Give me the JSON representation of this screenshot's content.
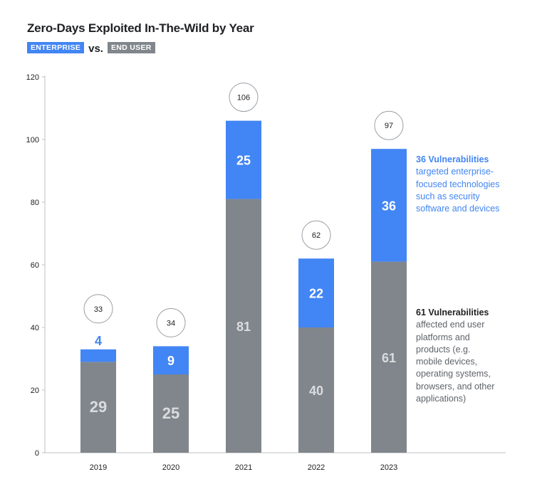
{
  "colors": {
    "enterprise": "#4285f4",
    "end_user": "#80868b",
    "axis": "#5f6368",
    "text": "#202124"
  },
  "chart_data": {
    "type": "bar",
    "stacked": true,
    "title": "Zero-Days Exploited In-The-Wild by Year",
    "legend": {
      "enterprise_label": "ENTERPRISE",
      "vs_label": "vs.",
      "end_user_label": "END USER",
      "placement": "top-left"
    },
    "categories": [
      "2019",
      "2020",
      "2021",
      "2022",
      "2023"
    ],
    "series": [
      {
        "name": "END USER",
        "values": [
          29,
          25,
          81,
          40,
          61
        ]
      },
      {
        "name": "ENTERPRISE",
        "values": [
          4,
          9,
          25,
          22,
          36
        ]
      }
    ],
    "totals": [
      33,
      34,
      106,
      62,
      97
    ],
    "ylim": [
      0,
      120
    ],
    "yticks": [
      0,
      20,
      40,
      60,
      80,
      100,
      120
    ],
    "grid": false
  },
  "annotations": {
    "enterprise": {
      "heading": "36 Vulnerabilities",
      "lines": [
        "targeted enterprise-",
        "focused technologies",
        "such as security",
        "software and devices"
      ]
    },
    "end_user": {
      "heading": "61 Vulnerabilities",
      "lines": [
        "affected end user",
        "platforms and",
        "products (e.g.",
        "mobile devices,",
        "operating systems,",
        "browsers, and other",
        "applications)"
      ]
    }
  }
}
